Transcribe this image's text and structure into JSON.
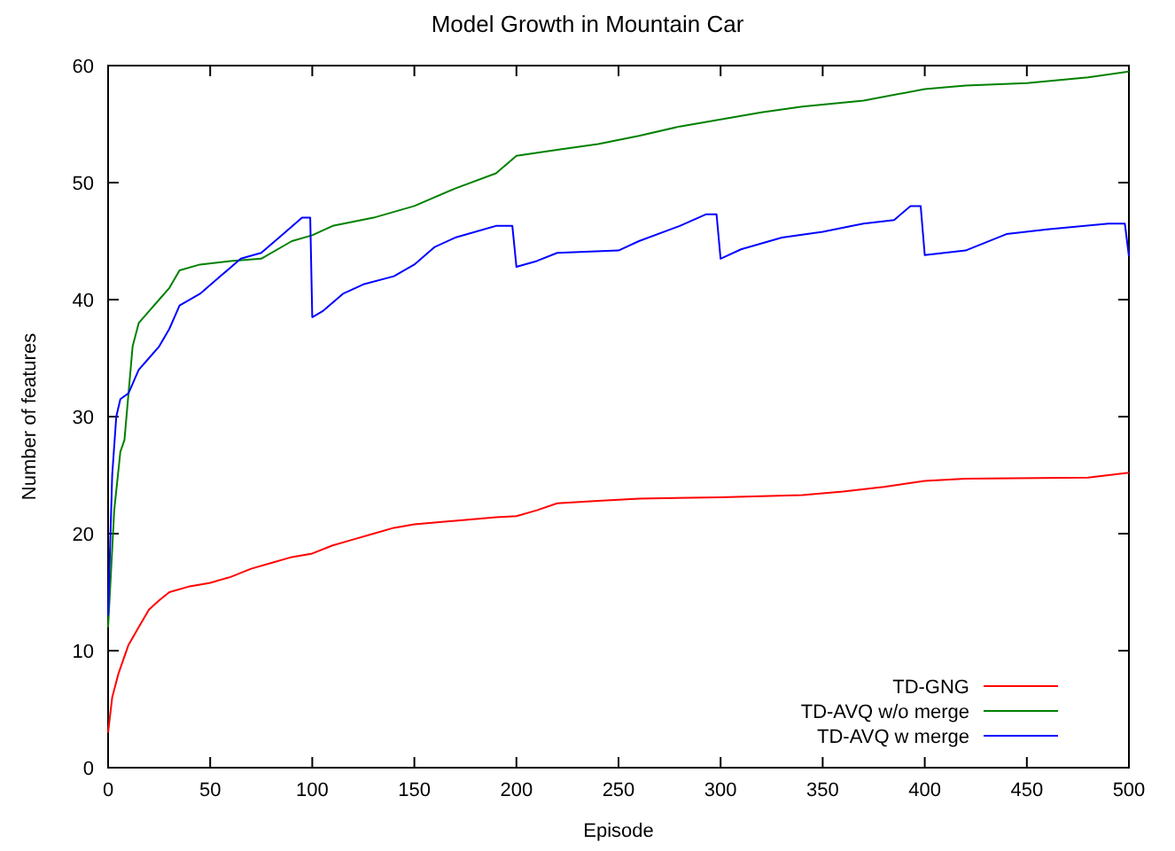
{
  "chart_data": {
    "type": "line",
    "title": "Model Growth in Mountain Car",
    "xlabel": "Episode",
    "ylabel": "Number of features",
    "xlim": [
      0,
      500
    ],
    "ylim": [
      0,
      60
    ],
    "xticks": [
      0,
      50,
      100,
      150,
      200,
      250,
      300,
      350,
      400,
      450,
      500
    ],
    "yticks": [
      0,
      10,
      20,
      30,
      40,
      50,
      60
    ],
    "grid": false,
    "legend": "bottom right",
    "marker": "none",
    "line_style": "solid",
    "series": [
      {
        "name": "TD-GNG",
        "color": "#ff0000",
        "x": [
          0,
          2,
          5,
          10,
          15,
          20,
          25,
          30,
          40,
          50,
          60,
          70,
          80,
          90,
          100,
          110,
          120,
          130,
          140,
          150,
          170,
          190,
          200,
          210,
          220,
          240,
          260,
          300,
          340,
          360,
          380,
          400,
          420,
          480,
          500
        ],
        "values": [
          3,
          6,
          8,
          10.5,
          12,
          13.5,
          14.3,
          15,
          15.5,
          15.8,
          16.3,
          17,
          17.5,
          18,
          18.3,
          19,
          19.5,
          20,
          20.5,
          20.8,
          21.1,
          21.4,
          21.5,
          22,
          22.6,
          22.8,
          23,
          23.1,
          23.3,
          23.6,
          24,
          24.5,
          24.7,
          24.8,
          25.2
        ]
      },
      {
        "name": "TD-AVQ w/o merge",
        "color": "#008000",
        "x": [
          0,
          3,
          6,
          8,
          10,
          12,
          15,
          20,
          25,
          30,
          35,
          45,
          60,
          75,
          90,
          100,
          110,
          130,
          150,
          170,
          190,
          200,
          220,
          240,
          260,
          280,
          300,
          320,
          340,
          370,
          400,
          420,
          450,
          480,
          500
        ],
        "values": [
          12,
          22,
          27,
          28,
          32,
          36,
          38,
          39,
          40,
          41,
          42.5,
          43,
          43.3,
          43.5,
          45,
          45.5,
          46.3,
          47,
          48,
          49.5,
          50.8,
          52.3,
          52.8,
          53.3,
          54,
          54.8,
          55.4,
          56,
          56.5,
          57,
          58,
          58.3,
          58.5,
          59,
          59.5
        ]
      },
      {
        "name": "TD-AVQ w merge",
        "color": "#0000ff",
        "x": [
          0,
          2,
          4,
          6,
          10,
          15,
          20,
          25,
          30,
          35,
          45,
          55,
          65,
          75,
          85,
          95,
          99,
          100,
          105,
          115,
          125,
          140,
          150,
          160,
          170,
          190,
          198,
          200,
          210,
          220,
          250,
          260,
          280,
          293,
          298,
          300,
          310,
          330,
          350,
          370,
          385,
          393,
          398,
          400,
          420,
          440,
          460,
          490,
          498,
          500
        ],
        "values": [
          13,
          25,
          30,
          31.5,
          32,
          34,
          35,
          36,
          37.5,
          39.5,
          40.5,
          42,
          43.5,
          44,
          45.5,
          47,
          47,
          38.5,
          39,
          40.5,
          41.3,
          42,
          43,
          44.5,
          45.3,
          46.3,
          46.3,
          42.8,
          43.3,
          44,
          44.2,
          45,
          46.3,
          47.3,
          47.3,
          43.5,
          44.3,
          45.3,
          45.8,
          46.5,
          46.8,
          48,
          48,
          43.8,
          44.2,
          45.6,
          46,
          46.5,
          46.5,
          43.7
        ]
      }
    ]
  }
}
